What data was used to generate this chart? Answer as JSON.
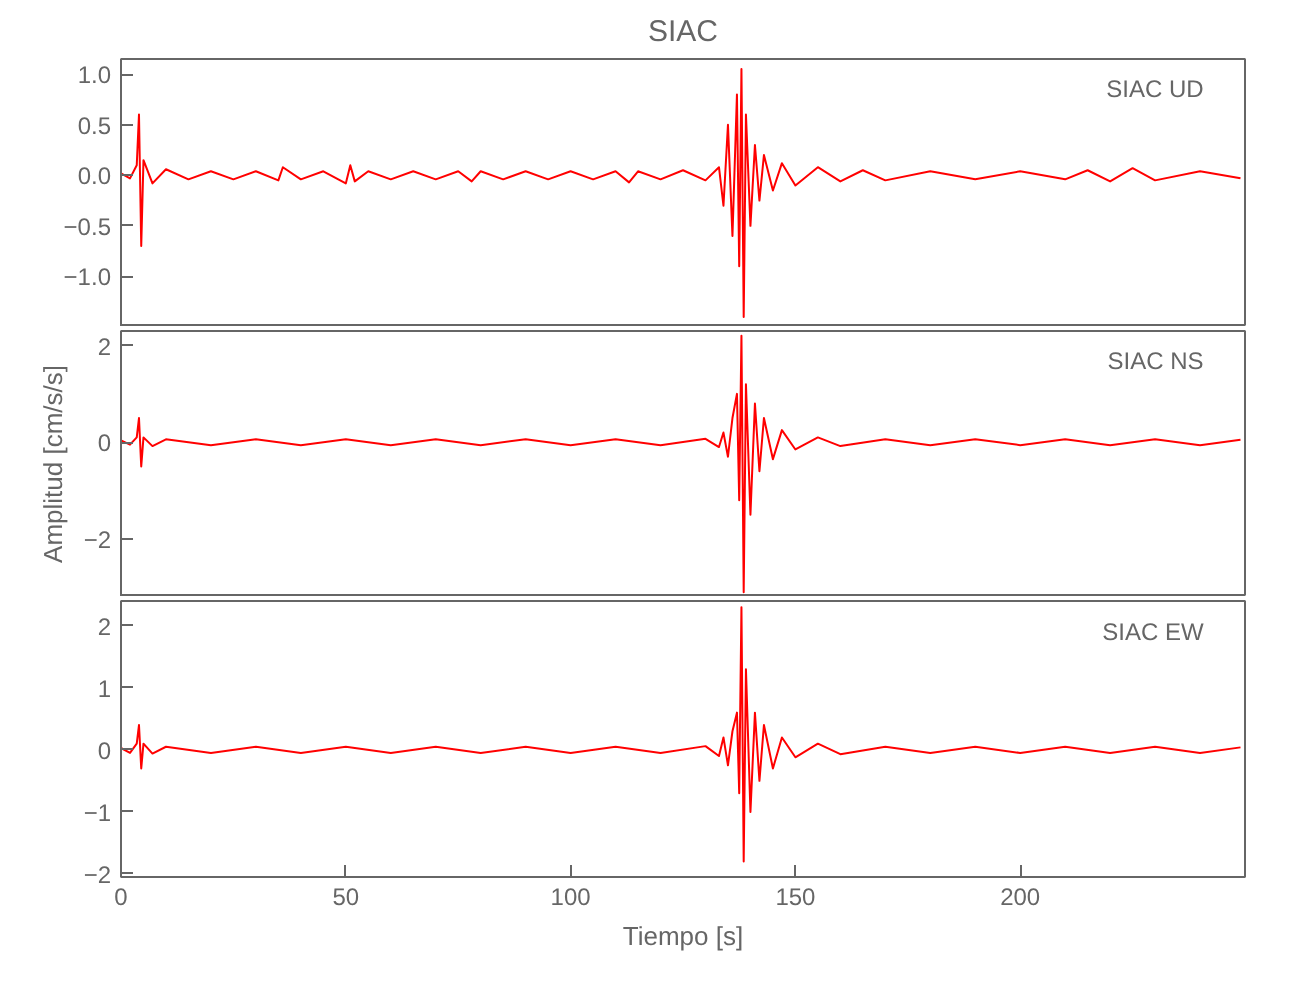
{
  "chart_data": [
    {
      "type": "line",
      "title": "SIAC",
      "annotations": [
        "SIAC   UD"
      ],
      "xlim": [
        0,
        250
      ],
      "xticks": [
        0,
        50,
        100,
        150,
        200
      ],
      "ylim": [
        -1.5,
        1.15
      ],
      "yticks": [
        {
          "value": 1.0,
          "label": "1.0"
        },
        {
          "value": 0.5,
          "label": "0.5"
        },
        {
          "value": 0.0,
          "label": "0.0"
        },
        {
          "value": -0.5,
          "label": "−0.5"
        },
        {
          "value": -1.0,
          "label": "−1.0"
        }
      ],
      "tick_labels": "y",
      "grid": false,
      "line_style": "solid",
      "series": [
        {
          "color": "#ff0000",
          "x": [
            0,
            2,
            3.5,
            4,
            4.5,
            5,
            7,
            10,
            15,
            20,
            25,
            30,
            35,
            36,
            40,
            45,
            50,
            51,
            52,
            55,
            60,
            65,
            70,
            75,
            78,
            80,
            85,
            90,
            95,
            100,
            105,
            110,
            113,
            115,
            120,
            125,
            130,
            133,
            134,
            135,
            136,
            137,
            137.5,
            138,
            138.5,
            139,
            140,
            141,
            142,
            143,
            145,
            147,
            150,
            155,
            160,
            165,
            170,
            180,
            190,
            200,
            210,
            215,
            220,
            225,
            230,
            240,
            249
          ],
          "values": [
            0.02,
            -0.03,
            0.1,
            0.6,
            -0.7,
            0.15,
            -0.08,
            0.06,
            -0.04,
            0.04,
            -0.04,
            0.04,
            -0.05,
            0.08,
            -0.04,
            0.04,
            -0.08,
            0.1,
            -0.06,
            0.04,
            -0.04,
            0.04,
            -0.04,
            0.04,
            -0.06,
            0.04,
            -0.04,
            0.04,
            -0.04,
            0.04,
            -0.04,
            0.04,
            -0.07,
            0.04,
            -0.04,
            0.05,
            -0.05,
            0.08,
            -0.3,
            0.5,
            -0.6,
            0.8,
            -0.9,
            1.05,
            -1.4,
            0.6,
            -0.5,
            0.3,
            -0.25,
            0.2,
            -0.15,
            0.12,
            -0.1,
            0.08,
            -0.06,
            0.05,
            -0.05,
            0.04,
            -0.04,
            0.04,
            -0.04,
            0.05,
            -0.06,
            0.07,
            -0.05,
            0.04,
            -0.03
          ]
        }
      ]
    },
    {
      "type": "line",
      "annotations": [
        "SIAC   NS"
      ],
      "ylabel": "Amplitud [cm/s/s]",
      "xlim": [
        0,
        250
      ],
      "xticks": [
        0,
        50,
        100,
        150,
        200
      ],
      "ylim": [
        -3.2,
        2.3
      ],
      "yticks": [
        2,
        0,
        {
          "value": -2,
          "label": "−2"
        }
      ],
      "tick_labels": "y",
      "grid": false,
      "line_style": "solid",
      "series": [
        {
          "color": "#ff0000",
          "x": [
            0,
            2,
            3.5,
            4,
            4.5,
            5,
            7,
            10,
            20,
            30,
            40,
            50,
            60,
            70,
            80,
            90,
            100,
            110,
            120,
            130,
            133,
            134,
            135,
            136,
            137,
            137.5,
            138,
            138.5,
            139,
            140,
            141,
            142,
            143,
            145,
            147,
            150,
            155,
            160,
            170,
            180,
            190,
            200,
            210,
            220,
            230,
            240,
            249
          ],
          "values": [
            0.04,
            -0.05,
            0.1,
            0.5,
            -0.5,
            0.1,
            -0.08,
            0.06,
            -0.06,
            0.06,
            -0.06,
            0.06,
            -0.06,
            0.06,
            -0.06,
            0.06,
            -0.06,
            0.06,
            -0.06,
            0.07,
            -0.1,
            0.2,
            -0.3,
            0.5,
            1.0,
            -1.2,
            2.2,
            -3.1,
            1.2,
            -1.5,
            0.8,
            -0.6,
            0.5,
            -0.35,
            0.25,
            -0.15,
            0.1,
            -0.08,
            0.06,
            -0.06,
            0.06,
            -0.06,
            0.06,
            -0.06,
            0.06,
            -0.06,
            0.05
          ]
        }
      ]
    },
    {
      "type": "line",
      "annotations": [
        "SIAC   EW"
      ],
      "xlabel": "Tiempo [s]",
      "xlim": [
        0,
        250
      ],
      "xticks": [
        0,
        50,
        100,
        150,
        200
      ],
      "ylim": [
        -2.05,
        2.4
      ],
      "yticks": [
        2,
        1,
        0,
        {
          "value": -1,
          "label": "−1"
        },
        {
          "value": -2,
          "label": "−2"
        }
      ],
      "grid": false,
      "line_style": "solid",
      "series": [
        {
          "color": "#ff0000",
          "x": [
            0,
            2,
            3.5,
            4,
            4.5,
            5,
            7,
            10,
            20,
            30,
            40,
            50,
            60,
            70,
            80,
            90,
            100,
            110,
            120,
            130,
            133,
            134,
            135,
            136,
            137,
            137.5,
            138,
            138.5,
            139,
            140,
            141,
            142,
            143,
            145,
            147,
            150,
            155,
            160,
            170,
            180,
            190,
            200,
            210,
            220,
            230,
            240,
            249
          ],
          "values": [
            0.03,
            -0.05,
            0.1,
            0.4,
            -0.3,
            0.1,
            -0.06,
            0.05,
            -0.05,
            0.05,
            -0.05,
            0.05,
            -0.05,
            0.05,
            -0.05,
            0.05,
            -0.05,
            0.05,
            -0.05,
            0.06,
            -0.1,
            0.2,
            -0.25,
            0.3,
            0.6,
            -0.7,
            2.3,
            -1.8,
            1.3,
            -1.0,
            0.6,
            -0.5,
            0.4,
            -0.3,
            0.2,
            -0.12,
            0.1,
            -0.07,
            0.05,
            -0.05,
            0.05,
            -0.05,
            0.05,
            -0.05,
            0.05,
            -0.05,
            0.04
          ]
        }
      ]
    }
  ]
}
